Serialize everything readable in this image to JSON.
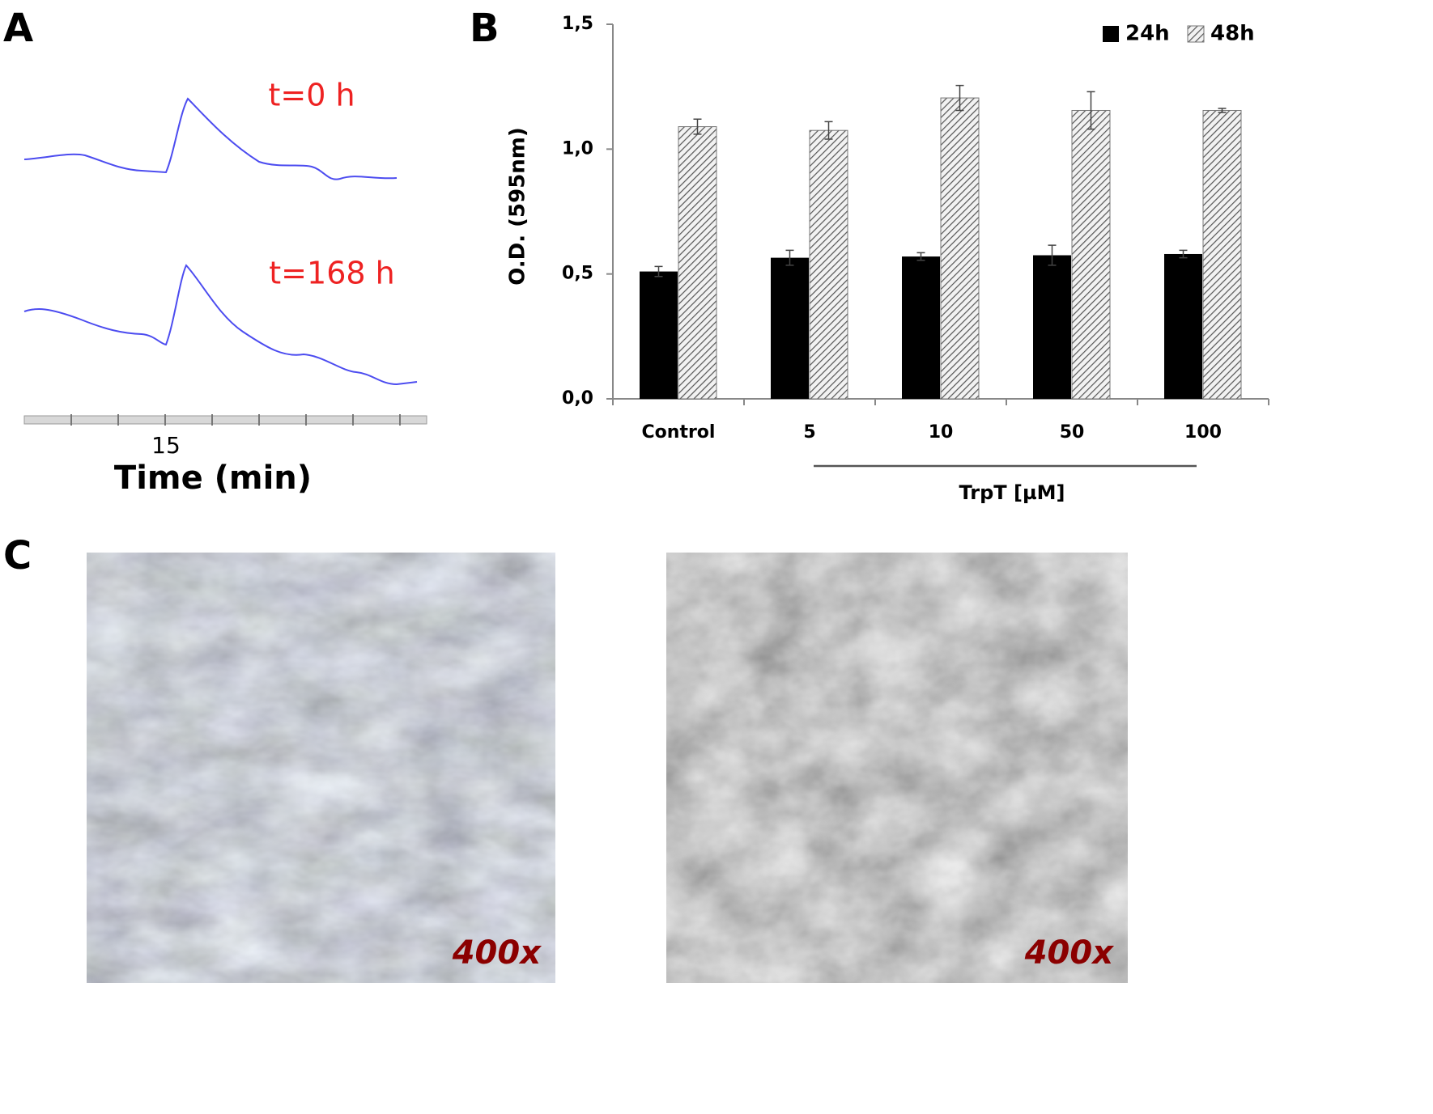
{
  "panel_a": {
    "letter": "A",
    "trace_labels": [
      "t=0 h",
      "t=168 h"
    ],
    "x_tick": "15",
    "x_label": "Time (min)"
  },
  "chart_data": {
    "type": "bar",
    "panel_label": "B",
    "y_label": "O.D. (595nm)",
    "x_label": "TrpT  [µM]",
    "categories": [
      "Control",
      "5",
      "10",
      "50",
      "100"
    ],
    "series": [
      {
        "name": "24h",
        "color": "#000000",
        "values": [
          0.51,
          0.565,
          0.57,
          0.575,
          0.58
        ],
        "errors": [
          0.02,
          0.03,
          0.015,
          0.04,
          0.015
        ]
      },
      {
        "name": "48h",
        "color": "#7a7a7a",
        "pattern": "hatch",
        "values": [
          1.09,
          1.075,
          1.205,
          1.155,
          1.155
        ],
        "errors": [
          0.03,
          0.035,
          0.05,
          0.075,
          0.008
        ]
      }
    ],
    "ylim": [
      0,
      1.5
    ],
    "yticks": [
      {
        "value": 0,
        "label": "0,0"
      },
      {
        "value": 0.5,
        "label": "0,5"
      },
      {
        "value": 1,
        "label": "1,0"
      },
      {
        "value": 1.5,
        "label": "1,5"
      }
    ],
    "grid": false,
    "legend": "top-right"
  },
  "panel_c": {
    "letter": "C",
    "images": [
      {
        "magnification": "400x"
      },
      {
        "magnification": "400x"
      }
    ]
  }
}
